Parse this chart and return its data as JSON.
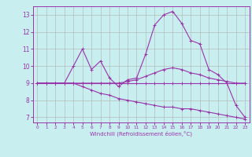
{
  "xlabel": "Windchill (Refroidissement éolien,°C)",
  "background_color": "#c8eef0",
  "line_color": "#9933aa",
  "grid_color": "#b0b0b0",
  "xlim": [
    -0.5,
    23.5
  ],
  "ylim": [
    6.7,
    13.5
  ],
  "xticks": [
    0,
    1,
    2,
    3,
    4,
    5,
    6,
    7,
    8,
    9,
    10,
    11,
    12,
    13,
    14,
    15,
    16,
    17,
    18,
    19,
    20,
    21,
    22,
    23
  ],
  "yticks": [
    7,
    8,
    9,
    10,
    11,
    12,
    13
  ],
  "lines": [
    {
      "x": [
        0,
        1,
        2,
        3,
        4,
        5,
        6,
        7,
        8,
        9,
        10,
        11,
        12,
        13,
        14,
        15,
        16,
        17,
        18,
        19,
        20,
        21,
        22,
        23
      ],
      "y": [
        9,
        9,
        9,
        9.0,
        10.0,
        11.0,
        9.8,
        10.3,
        9.3,
        8.8,
        9.2,
        9.3,
        10.7,
        12.4,
        13.0,
        13.2,
        12.5,
        11.5,
        11.3,
        9.8,
        9.5,
        9.0,
        7.7,
        7.0
      ]
    },
    {
      "x": [
        0,
        1,
        2,
        3,
        4,
        5,
        6,
        7,
        8,
        9,
        10,
        11,
        12,
        13,
        14,
        15,
        16,
        17,
        18,
        19,
        20,
        21,
        22,
        23
      ],
      "y": [
        9,
        9,
        9,
        9,
        9,
        9,
        9,
        9,
        9,
        9,
        9,
        9,
        9,
        9,
        9,
        9,
        9,
        9,
        9,
        9,
        9,
        9,
        9,
        9
      ]
    },
    {
      "x": [
        0,
        1,
        2,
        3,
        4,
        5,
        6,
        7,
        8,
        9,
        10,
        11,
        12,
        13,
        14,
        15,
        16,
        17,
        18,
        19,
        20,
        21,
        22,
        23
      ],
      "y": [
        9,
        9,
        9,
        9,
        9,
        9,
        9,
        9,
        9,
        9,
        9.1,
        9.2,
        9.4,
        9.6,
        9.8,
        9.9,
        9.8,
        9.6,
        9.5,
        9.3,
        9.2,
        9.1,
        9.0,
        9.0
      ]
    },
    {
      "x": [
        0,
        1,
        2,
        3,
        4,
        5,
        6,
        7,
        8,
        9,
        10,
        11,
        12,
        13,
        14,
        15,
        16,
        17,
        18,
        19,
        20,
        21,
        22,
        23
      ],
      "y": [
        9,
        9,
        9,
        9,
        9,
        8.8,
        8.6,
        8.4,
        8.3,
        8.1,
        8.0,
        7.9,
        7.8,
        7.7,
        7.6,
        7.6,
        7.5,
        7.5,
        7.4,
        7.3,
        7.2,
        7.1,
        7.0,
        6.9
      ]
    }
  ]
}
